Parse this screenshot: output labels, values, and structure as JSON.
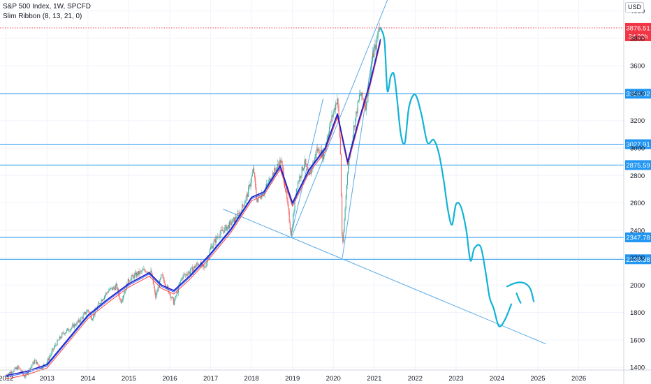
{
  "header": {
    "symbol_line": "S&P 500 Index, 1W, SPCFD",
    "indicator_line": "Slim Ribbon (8, 13, 21, 0)"
  },
  "currency": "USD",
  "colors": {
    "level_line": "#2196f3",
    "level_tag": "#2196f3",
    "price_tag": "#f23645",
    "trendline": "#5aa9e6",
    "drawing": "#12b3d6",
    "candle_up": "#26a69a",
    "candle_down": "#ef5350",
    "ribbon_fast": "#1e1ec8",
    "ribbon_slow": "#ff4040"
  },
  "chart_data": {
    "type": "line",
    "x_ticks": [
      "2012",
      "2013",
      "2014",
      "2015",
      "2016",
      "2017",
      "2018",
      "2019",
      "2020",
      "2021",
      "2022",
      "2023",
      "2024",
      "2025",
      "2026"
    ],
    "y_ticks": [
      1400,
      1600,
      1800,
      2000,
      2200,
      2400,
      2600,
      2800,
      3000,
      3200,
      3400,
      3600,
      3800,
      4000
    ],
    "ylim": [
      1380,
      4080
    ],
    "xlim": [
      2011.85,
      2027.1
    ],
    "current_price": {
      "value": "3876.51",
      "countdown": "3d 22h"
    },
    "horizontal_levels": [
      {
        "value": 3396.32,
        "label": "3396.32"
      },
      {
        "value": 3027.91,
        "label": "3027.91"
      },
      {
        "value": 2875.59,
        "label": "2875.59"
      },
      {
        "value": 2347.78,
        "label": "2347.78"
      },
      {
        "value": 2188.38,
        "label": "2188.38"
      }
    ],
    "price_series": [
      [
        2012.0,
        1345
      ],
      [
        2012.3,
        1400
      ],
      [
        2012.45,
        1330
      ],
      [
        2012.7,
        1450
      ],
      [
        2012.85,
        1390
      ],
      [
        2013.0,
        1440
      ],
      [
        2013.2,
        1560
      ],
      [
        2013.4,
        1650
      ],
      [
        2013.6,
        1690
      ],
      [
        2013.8,
        1740
      ],
      [
        2014.0,
        1820
      ],
      [
        2014.1,
        1760
      ],
      [
        2014.3,
        1880
      ],
      [
        2014.5,
        1960
      ],
      [
        2014.7,
        1990
      ],
      [
        2014.8,
        1880
      ],
      [
        2015.0,
        2040
      ],
      [
        2015.2,
        2080
      ],
      [
        2015.4,
        2110
      ],
      [
        2015.55,
        2090
      ],
      [
        2015.65,
        1910
      ],
      [
        2015.8,
        2070
      ],
      [
        2016.0,
        1940
      ],
      [
        2016.1,
        1870
      ],
      [
        2016.3,
        2060
      ],
      [
        2016.5,
        2100
      ],
      [
        2016.7,
        2160
      ],
      [
        2016.85,
        2120
      ],
      [
        2017.0,
        2270
      ],
      [
        2017.2,
        2370
      ],
      [
        2017.5,
        2450
      ],
      [
        2017.7,
        2520
      ],
      [
        2017.9,
        2660
      ],
      [
        2018.05,
        2850
      ],
      [
        2018.12,
        2620
      ],
      [
        2018.3,
        2680
      ],
      [
        2018.5,
        2800
      ],
      [
        2018.72,
        2910
      ],
      [
        2018.85,
        2650
      ],
      [
        2018.97,
        2360
      ],
      [
        2019.1,
        2720
      ],
      [
        2019.3,
        2900
      ],
      [
        2019.4,
        2780
      ],
      [
        2019.6,
        2990
      ],
      [
        2019.75,
        2950
      ],
      [
        2019.9,
        3150
      ],
      [
        2020.1,
        3370
      ],
      [
        2020.17,
        3000
      ],
      [
        2020.22,
        2240
      ],
      [
        2020.35,
        2850
      ],
      [
        2020.5,
        3150
      ],
      [
        2020.65,
        3400
      ],
      [
        2020.8,
        3300
      ],
      [
        2020.95,
        3650
      ],
      [
        2021.05,
        3760
      ],
      [
        2021.12,
        3900
      ],
      [
        2021.15,
        3876
      ]
    ],
    "ribbon_series": [
      [
        2012.0,
        1340
      ],
      [
        2012.5,
        1370
      ],
      [
        2013.0,
        1420
      ],
      [
        2013.5,
        1600
      ],
      [
        2014.0,
        1780
      ],
      [
        2014.5,
        1900
      ],
      [
        2015.0,
        2010
      ],
      [
        2015.5,
        2090
      ],
      [
        2015.8,
        2000
      ],
      [
        2016.1,
        1960
      ],
      [
        2016.5,
        2070
      ],
      [
        2017.0,
        2230
      ],
      [
        2017.5,
        2410
      ],
      [
        2018.0,
        2640
      ],
      [
        2018.3,
        2680
      ],
      [
        2018.7,
        2870
      ],
      [
        2019.0,
        2600
      ],
      [
        2019.4,
        2840
      ],
      [
        2019.8,
        3000
      ],
      [
        2020.1,
        3250
      ],
      [
        2020.35,
        2900
      ],
      [
        2020.6,
        3180
      ],
      [
        2020.9,
        3480
      ],
      [
        2021.15,
        3790
      ]
    ],
    "projected_path": [
      [
        2021.15,
        3876
      ],
      [
        2021.25,
        3780
      ],
      [
        2021.32,
        3420
      ],
      [
        2021.4,
        3520
      ],
      [
        2021.48,
        3540
      ],
      [
        2021.55,
        3380
      ],
      [
        2021.65,
        3100
      ],
      [
        2021.75,
        3040
      ],
      [
        2021.85,
        3300
      ],
      [
        2022.0,
        3390
      ],
      [
        2022.15,
        3250
      ],
      [
        2022.3,
        3040
      ],
      [
        2022.45,
        3060
      ],
      [
        2022.58,
        2960
      ],
      [
        2022.7,
        2760
      ],
      [
        2022.8,
        2550
      ],
      [
        2022.9,
        2440
      ],
      [
        2023.0,
        2590
      ],
      [
        2023.12,
        2570
      ],
      [
        2023.25,
        2400
      ],
      [
        2023.35,
        2180
      ],
      [
        2023.45,
        2270
      ],
      [
        2023.6,
        2280
      ],
      [
        2023.72,
        2100
      ],
      [
        2023.82,
        1910
      ],
      [
        2023.92,
        1830
      ],
      [
        2024.05,
        1700
      ],
      [
        2024.2,
        1750
      ],
      [
        2024.35,
        1860
      ]
    ],
    "projected_tail": [
      [
        2024.25,
        1990
      ],
      [
        2024.4,
        2010
      ],
      [
        2024.55,
        2020
      ],
      [
        2024.7,
        2010
      ],
      [
        2024.82,
        1970
      ],
      [
        2024.9,
        1880
      ]
    ],
    "projected_hook": [
      [
        2024.48,
        1940
      ],
      [
        2024.53,
        1900
      ],
      [
        2024.58,
        1870
      ]
    ],
    "trendlines": [
      [
        [
          2017.3,
          2555
        ],
        [
          2025.2,
          1570
        ]
      ],
      [
        [
          2018.97,
          2345
        ],
        [
          2021.35,
          4100
        ]
      ],
      [
        [
          2019.0,
          2405
        ],
        [
          2019.75,
          3360
        ]
      ],
      [
        [
          2020.22,
          2200
        ],
        [
          2021.0,
          3760
        ]
      ]
    ]
  }
}
